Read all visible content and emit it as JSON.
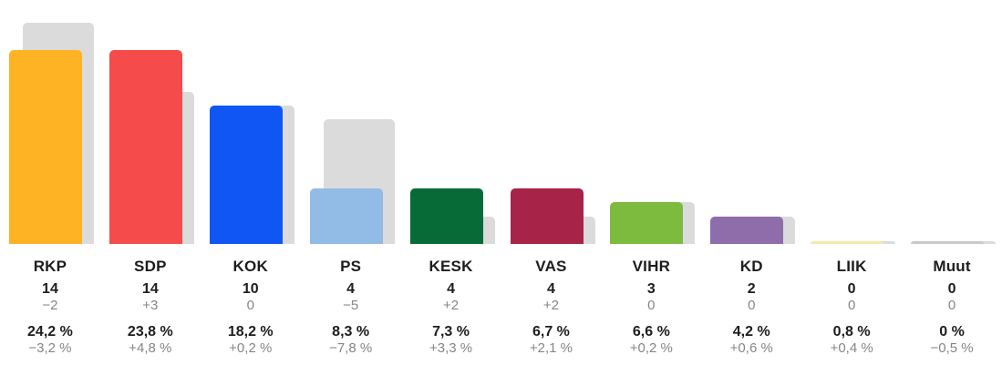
{
  "chart_data": {
    "type": "bar",
    "title": "",
    "categories": [
      "RKP",
      "SDP",
      "KOK",
      "PS",
      "KESK",
      "VAS",
      "VIHR",
      "KD",
      "LIIK",
      "Muut"
    ],
    "series": [
      {
        "name": "seats-current",
        "values": [
          14,
          14,
          10,
          4,
          4,
          4,
          3,
          2,
          0,
          0
        ]
      },
      {
        "name": "seats-previous",
        "values": [
          16,
          11,
          10,
          9,
          2,
          2,
          3,
          2,
          0,
          0
        ]
      },
      {
        "name": "vote-share-pct",
        "values": [
          24.2,
          23.8,
          18.2,
          8.3,
          7.3,
          6.7,
          6.6,
          4.2,
          0.8,
          0
        ]
      },
      {
        "name": "vote-share-change-pct",
        "values": [
          -3.2,
          4.8,
          0.2,
          -7.8,
          3.3,
          2.1,
          0.2,
          0.6,
          0.4,
          -0.5
        ]
      }
    ],
    "legend": "none",
    "grid": false,
    "axes": "none",
    "shadow_bar_color": "#dbdbdb",
    "parties": [
      {
        "abbr": "RKP",
        "seats": 14,
        "prev_seats": 16,
        "seats_display": "14",
        "seats_change": "−2",
        "pct_display": "24,2 %",
        "pct_change": "−3,2 %",
        "color": "#fdb324"
      },
      {
        "abbr": "SDP",
        "seats": 14,
        "prev_seats": 11,
        "seats_display": "14",
        "seats_change": "+3",
        "pct_display": "23,8 %",
        "pct_change": "+4,8 %",
        "color": "#f54b4b"
      },
      {
        "abbr": "KOK",
        "seats": 10,
        "prev_seats": 10,
        "seats_display": "10",
        "seats_change": "0",
        "pct_display": "18,2 %",
        "pct_change": "+0,2 %",
        "color": "#0f56f5"
      },
      {
        "abbr": "PS",
        "seats": 4,
        "prev_seats": 9,
        "seats_display": "4",
        "seats_change": "−5",
        "pct_display": "8,3 %",
        "pct_change": "−7,8 %",
        "color": "#92bce5"
      },
      {
        "abbr": "KESK",
        "seats": 4,
        "prev_seats": 2,
        "seats_display": "4",
        "seats_change": "+2",
        "pct_display": "7,3 %",
        "pct_change": "+3,3 %",
        "color": "#076b38"
      },
      {
        "abbr": "VAS",
        "seats": 4,
        "prev_seats": 2,
        "seats_display": "4",
        "seats_change": "+2",
        "pct_display": "6,7 %",
        "pct_change": "+2,1 %",
        "color": "#a82348"
      },
      {
        "abbr": "VIHR",
        "seats": 3,
        "prev_seats": 3,
        "seats_display": "3",
        "seats_change": "0",
        "pct_display": "6,6 %",
        "pct_change": "+0,2 %",
        "color": "#7dbb3f"
      },
      {
        "abbr": "KD",
        "seats": 2,
        "prev_seats": 2,
        "seats_display": "2",
        "seats_change": "0",
        "pct_display": "4,2 %",
        "pct_change": "+0,6 %",
        "color": "#8e6daa"
      },
      {
        "abbr": "LIIK",
        "seats": 0,
        "prev_seats": 0,
        "seats_display": "0",
        "seats_change": "0",
        "pct_display": "0,8 %",
        "pct_change": "+0,4 %",
        "color": "#f6e9a8"
      },
      {
        "abbr": "Muut",
        "seats": 0,
        "prev_seats": 0,
        "seats_display": "0",
        "seats_change": "0",
        "pct_display": "0 %",
        "pct_change": "−0,5 %",
        "color": "#c9c9c9"
      }
    ]
  }
}
